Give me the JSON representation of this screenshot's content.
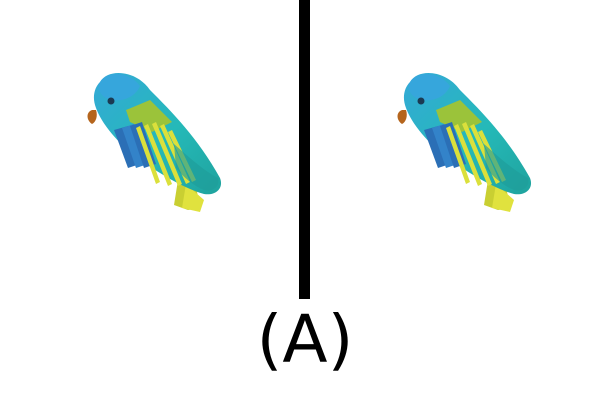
{
  "caption": "(A)",
  "panels": [
    {
      "icon": "parrot-icon"
    },
    {
      "icon": "parrot-icon"
    }
  ],
  "colors": {
    "body_light": "#34c1c6",
    "body_mid": "#22b3b0",
    "head": "#33a8d6",
    "wing_blue": "#2f7fc3",
    "stripe_yellow": "#d9e03a",
    "beak": "#b5651d",
    "divider": "#000000"
  }
}
